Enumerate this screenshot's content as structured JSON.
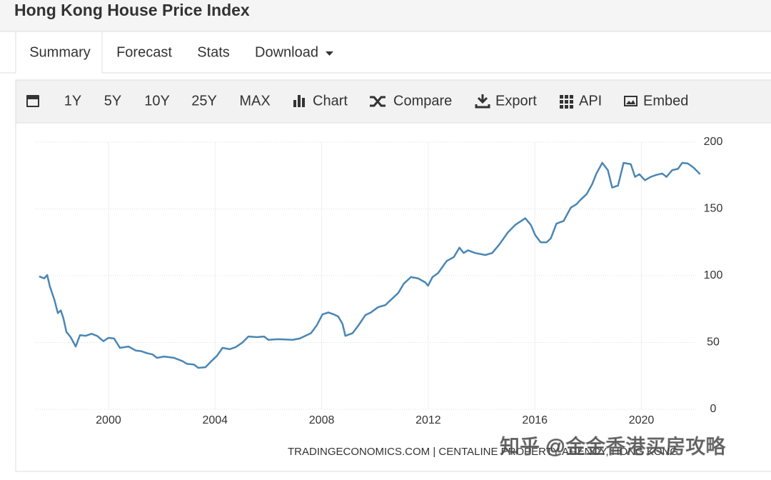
{
  "header": {
    "title": "Hong Kong House Price Index"
  },
  "tabs": [
    "Summary",
    "Forecast",
    "Stats",
    "Download"
  ],
  "toolbar": [
    "1Y",
    "5Y",
    "10Y",
    "25Y",
    "MAX",
    "Chart",
    "Compare",
    "Export",
    "API",
    "Embed"
  ],
  "chart_data": {
    "type": "line",
    "color": "#4a86b4",
    "grid": true,
    "xlim": [
      1997.25,
      2022.45
    ],
    "xticks": [
      2000,
      2004,
      2008,
      2012,
      2016,
      2020
    ],
    "ylim": [
      0,
      200
    ],
    "yticks": [
      0,
      50,
      100,
      150,
      200
    ],
    "x": [
      1997.4,
      1997.59,
      1997.7,
      1997.8,
      1997.97,
      1998.1,
      1998.21,
      1998.31,
      1998.42,
      1998.58,
      1998.77,
      1998.93,
      1999.14,
      1999.36,
      1999.57,
      1999.81,
      2000.0,
      2000.21,
      2000.43,
      2000.75,
      2001.02,
      2001.23,
      2001.45,
      2001.66,
      2001.82,
      2002.09,
      2002.46,
      2002.78,
      2002.95,
      2003.21,
      2003.37,
      2003.64,
      2003.86,
      2004.07,
      2004.28,
      2004.55,
      2004.77,
      2005.03,
      2005.25,
      2005.57,
      2005.84,
      2006.0,
      2006.37,
      2006.91,
      2007.18,
      2007.6,
      2007.82,
      2008.03,
      2008.25,
      2008.46,
      2008.62,
      2008.78,
      2008.89,
      2009.16,
      2009.37,
      2009.64,
      2009.85,
      2010.12,
      2010.39,
      2010.6,
      2010.87,
      2011.08,
      2011.35,
      2011.62,
      2011.89,
      2011.99,
      2012.16,
      2012.37,
      2012.69,
      2012.96,
      2013.17,
      2013.33,
      2013.49,
      2013.76,
      2014.14,
      2014.4,
      2014.67,
      2014.99,
      2015.26,
      2015.64,
      2015.85,
      2016.01,
      2016.22,
      2016.44,
      2016.6,
      2016.81,
      2017.08,
      2017.35,
      2017.56,
      2017.72,
      2017.94,
      2018.15,
      2018.31,
      2018.53,
      2018.74,
      2018.9,
      2019.12,
      2019.33,
      2019.6,
      2019.76,
      2019.92,
      2020.13,
      2020.35,
      2020.56,
      2020.78,
      2020.94,
      2021.15,
      2021.37,
      2021.53,
      2021.74,
      2021.95,
      2022.2
    ],
    "values": [
      99.5,
      98,
      100.5,
      92,
      82,
      72,
      74,
      68,
      58,
      54,
      47,
      55.5,
      55,
      56.5,
      55,
      51,
      53.5,
      53,
      46,
      47,
      44,
      43.5,
      42,
      41,
      38.5,
      39.5,
      38.5,
      36,
      34,
      33.5,
      31,
      31.5,
      36,
      40,
      46,
      45,
      46.5,
      50,
      54.5,
      54,
      54.5,
      52,
      52.5,
      52,
      53,
      57,
      63,
      71,
      72.5,
      71,
      69.5,
      64,
      55,
      57,
      62.5,
      70.5,
      72.5,
      76.5,
      78,
      82,
      87,
      94,
      99,
      98,
      95,
      92.5,
      99,
      102,
      111,
      114,
      121,
      117,
      119,
      117,
      115.5,
      117,
      123.5,
      132.5,
      138,
      143,
      138,
      130.5,
      125,
      125,
      128,
      139,
      141,
      151,
      153.5,
      157,
      161,
      168.5,
      176.5,
      184.5,
      179,
      166,
      167.5,
      184.5,
      183.5,
      174,
      176,
      171.5,
      174,
      175.5,
      176.5,
      174,
      179,
      180,
      184.5,
      184,
      181,
      176
    ],
    "source": "TRADINGECONOMICS.COM | CENTALINE PROPERTY AGENCY, HONG KONG"
  },
  "watermark": "知乎 @金金香港买房攻略"
}
